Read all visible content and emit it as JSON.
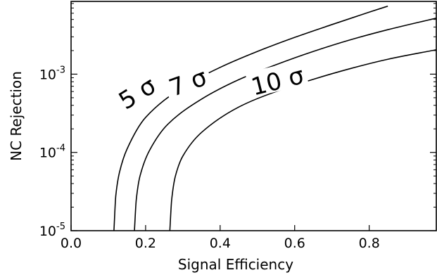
{
  "chart_data": {
    "type": "line",
    "title": "",
    "xlabel": "Signal Efficiency",
    "ylabel": "NC Rejection",
    "xlim": [
      0.0,
      0.98
    ],
    "ylim": [
      1e-05,
      0.0085
    ],
    "yscale": "log",
    "grid": false,
    "legend": "none",
    "xticks": [
      {
        "value": 0.0,
        "label": "0.0"
      },
      {
        "value": 0.2,
        "label": "0.2"
      },
      {
        "value": 0.4,
        "label": "0.4"
      },
      {
        "value": 0.6,
        "label": "0.6"
      },
      {
        "value": 0.8,
        "label": "0.8"
      }
    ],
    "yticks": [
      {
        "value": 1e-05,
        "base": "10",
        "exp": "-5"
      },
      {
        "value": 0.0001,
        "base": "10",
        "exp": "-4"
      },
      {
        "value": 0.001,
        "base": "10",
        "exp": "-3"
      }
    ],
    "series": [
      {
        "label": "5 σ",
        "label_at": [
          0.18,
          0.00055
        ],
        "label_angle": -32,
        "x": [
          0.115,
          0.12,
          0.13,
          0.15,
          0.2,
          0.3,
          0.4,
          0.5,
          0.6,
          0.7,
          0.8,
          0.85
        ],
        "y": [
          1e-05,
          2.8e-05,
          5.6e-05,
          0.00011,
          0.00028,
          0.00068,
          0.00122,
          0.00195,
          0.00295,
          0.0043,
          0.0062,
          0.0074
        ]
      },
      {
        "label": "7 σ",
        "label_at": [
          0.315,
          0.00075
        ],
        "label_angle": -20,
        "x": [
          0.17,
          0.175,
          0.185,
          0.21,
          0.26,
          0.35,
          0.45,
          0.55,
          0.65,
          0.75,
          0.85,
          0.98
        ],
        "y": [
          1e-05,
          2.5e-05,
          5e-05,
          0.000105,
          0.00023,
          0.00048,
          0.00085,
          0.00132,
          0.00195,
          0.00275,
          0.0037,
          0.0052
        ]
      },
      {
        "label": "10 σ",
        "label_at": [
          0.555,
          0.00078
        ],
        "label_angle": -14,
        "x": [
          0.265,
          0.27,
          0.28,
          0.3,
          0.35,
          0.45,
          0.55,
          0.65,
          0.75,
          0.85,
          0.98
        ],
        "y": [
          1e-05,
          2.5e-05,
          5e-05,
          9e-05,
          0.00018,
          0.00038,
          0.0006,
          0.00086,
          0.00118,
          0.00155,
          0.00205
        ]
      }
    ]
  }
}
